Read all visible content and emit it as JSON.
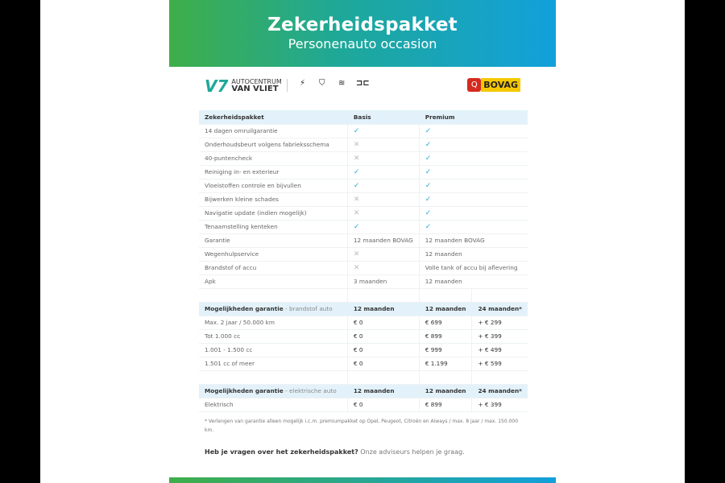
{
  "header": {
    "title": "Zekerheidspakket",
    "subtitle": "Personenauto occasion"
  },
  "logos": {
    "dealer_line1": "AUTOCENTRUM",
    "dealer_line2": "VAN VLIET",
    "brands": [
      "opel-logo",
      "peugeot-logo",
      "citroen-logo",
      "aiways-logo"
    ],
    "bovag": "BOVAG"
  },
  "colors": {
    "gradient_start": "#3fae49",
    "gradient_end": "#12a0dc",
    "header_row": "#e3f2fa",
    "check": "#29a8d8"
  },
  "package_table": {
    "headers": [
      "Zekerheidspakket",
      "Basis",
      "Premium"
    ],
    "rows": [
      [
        "14 dagen omruilgarantie",
        "✓",
        "✓"
      ],
      [
        "Onderhoudsbeurt volgens fabrieksschema",
        "✕",
        "✓"
      ],
      [
        "40-puntencheck",
        "✕",
        "✓"
      ],
      [
        "Reiniging in- en exterieur",
        "✓",
        "✓"
      ],
      [
        "Vloeistoffen controle en bijvullen",
        "✓",
        "✓"
      ],
      [
        "Bijwerken kleine schades",
        "✕",
        "✓"
      ],
      [
        "Navigatie update (indien mogelijk)",
        "✕",
        "✓"
      ],
      [
        "Tenaamstelling kenteken",
        "✓",
        "✓"
      ],
      [
        "Garantie",
        "12 maanden BOVAG",
        "12 maanden BOVAG"
      ],
      [
        "Wegenhulpservice",
        "✕",
        "12 maanden"
      ],
      [
        "Brandstof of accu",
        "✕",
        "Volle tank of accu bij aflevering"
      ],
      [
        "Apk",
        "3 maanden",
        "12 maanden"
      ]
    ]
  },
  "fuel_table": {
    "title": "Mogelijkheden garantie",
    "subtitle": " - brandstof auto",
    "headers": [
      "12 maanden",
      "12 maanden",
      "24 maanden*"
    ],
    "rows": [
      [
        "Max. 2 jaar / 50.000 km",
        "€ 0",
        "€ 699",
        "+ € 299"
      ],
      [
        "Tot 1.000 cc",
        "€ 0",
        "€ 899",
        "+ € 399"
      ],
      [
        "1.001 - 1.500 cc",
        "€ 0",
        "€ 999",
        "+ € 499"
      ],
      [
        "1.501 cc of meer",
        "€ 0",
        "€ 1.199",
        "+ € 599"
      ]
    ]
  },
  "electric_table": {
    "title": "Mogelijkheden garantie",
    "subtitle": " - elektrische auto",
    "headers": [
      "12 maanden",
      "12 maanden",
      "24 maanden*"
    ],
    "rows": [
      [
        "Elektrisch",
        "€ 0",
        "€ 899",
        "+ € 399"
      ]
    ]
  },
  "footnote": "* Verlengen van garantie alleen mogelijk i.c.m. premiumpakket op Opel, Peugeot, Citroën en Aiways / max. 8 jaar / max. 150.000 km.",
  "question": {
    "bold": "Heb je vragen over het zekerheidspakket?",
    "rest": " Onze adviseurs helpen je graag."
  }
}
